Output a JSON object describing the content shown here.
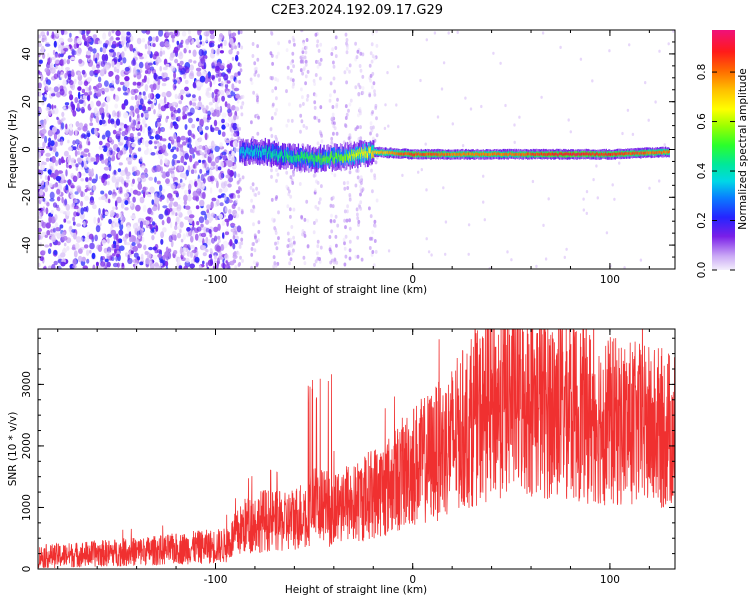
{
  "title": "C2E3.2024.192.09.17.G29",
  "chart_data": [
    {
      "type": "heatmap",
      "xlabel": "Height of straight line (km)",
      "ylabel": "Frequency (Hz)",
      "xlim": [
        -190,
        133
      ],
      "ylim": [
        -50,
        50
      ],
      "xticks": [
        -100,
        0,
        100
      ],
      "yticks": [
        -40,
        -20,
        0,
        20,
        40
      ],
      "colorbar": {
        "label": "Normalized spectral amplitude",
        "range": [
          0,
          0.97
        ],
        "ticks": [
          0.0,
          0.2,
          0.4,
          0.6,
          0.8
        ]
      },
      "description_points": {
        "noise_region_x": [
          -190,
          -92
        ],
        "signal_track": [
          {
            "x": -88,
            "y": -1,
            "amp": 0.35
          },
          {
            "x": -75,
            "y": -1,
            "amp": 0.4
          },
          {
            "x": -65,
            "y": -3,
            "amp": 0.45
          },
          {
            "x": -50,
            "y": -4,
            "amp": 0.5
          },
          {
            "x": -35,
            "y": -3,
            "amp": 0.55
          },
          {
            "x": -20,
            "y": -1,
            "amp": 0.7
          },
          {
            "x": 0,
            "y": -2,
            "amp": 0.85
          },
          {
            "x": 20,
            "y": -2,
            "amp": 0.8
          },
          {
            "x": 50,
            "y": -2,
            "amp": 0.8
          },
          {
            "x": 80,
            "y": -2,
            "amp": 0.9
          },
          {
            "x": 100,
            "y": -2,
            "amp": 0.85
          },
          {
            "x": 130,
            "y": -1,
            "amp": 0.8
          }
        ]
      }
    },
    {
      "type": "line",
      "xlabel": "Height of straight line (km)",
      "ylabel": "SNR (10 * v/v)",
      "xlim": [
        -190,
        133
      ],
      "ylim": [
        0,
        3900
      ],
      "xticks": [
        -100,
        0,
        100
      ],
      "yticks": [
        0,
        1000,
        2000,
        3000
      ],
      "color": "#f03030",
      "series": [
        {
          "x": [
            -190,
            -160,
            -130,
            -110,
            -95,
            -85,
            -75,
            -65,
            -55,
            -50,
            -45,
            -40,
            -35,
            -30,
            -25,
            -20,
            -15,
            -10,
            -5,
            0,
            5,
            10,
            15,
            20,
            25,
            30,
            35,
            40,
            45,
            50,
            55,
            60,
            70,
            80,
            90,
            100,
            110,
            120,
            133
          ],
          "y": [
            200,
            250,
            300,
            350,
            380,
            700,
            800,
            750,
            900,
            1050,
            1000,
            950,
            1100,
            1050,
            1150,
            1250,
            1300,
            1400,
            1550,
            1700,
            1750,
            1850,
            1950,
            2100,
            2250,
            2400,
            2500,
            2600,
            2700,
            2800,
            2750,
            2700,
            2650,
            2600,
            2500,
            2400,
            2350,
            2300,
            2250
          ]
        }
      ]
    }
  ],
  "colors": {
    "signal_line": "#f03030",
    "noise_dots": "#7a1fe8"
  }
}
